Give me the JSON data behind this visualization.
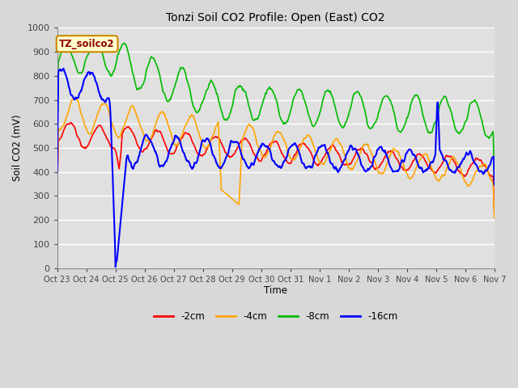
{
  "title": "Tonzi Soil CO2 Profile: Open (East) CO2",
  "ylabel": "Soil CO2 (mV)",
  "xlabel": "Time",
  "annotation": "TZ_soilco2",
  "ylim": [
    0,
    1000
  ],
  "tick_labels": [
    "Oct 23",
    "Oct 24",
    "Oct 25",
    "Oct 26",
    "Oct 27",
    "Oct 28",
    "Oct 29",
    "Oct 30",
    "Oct 31",
    "Nov 1",
    "Nov 2",
    "Nov 3",
    "Nov 4",
    "Nov 5",
    "Nov 6",
    "Nov 7"
  ],
  "colors": {
    "red": "#ff0000",
    "orange": "#ffa500",
    "green": "#00bb00",
    "blue": "#0000ff"
  },
  "background_color": "#e0e0e0",
  "grid_color": "#ffffff",
  "legend": [
    "-2cm",
    "-4cm",
    "-8cm",
    "-16cm"
  ]
}
